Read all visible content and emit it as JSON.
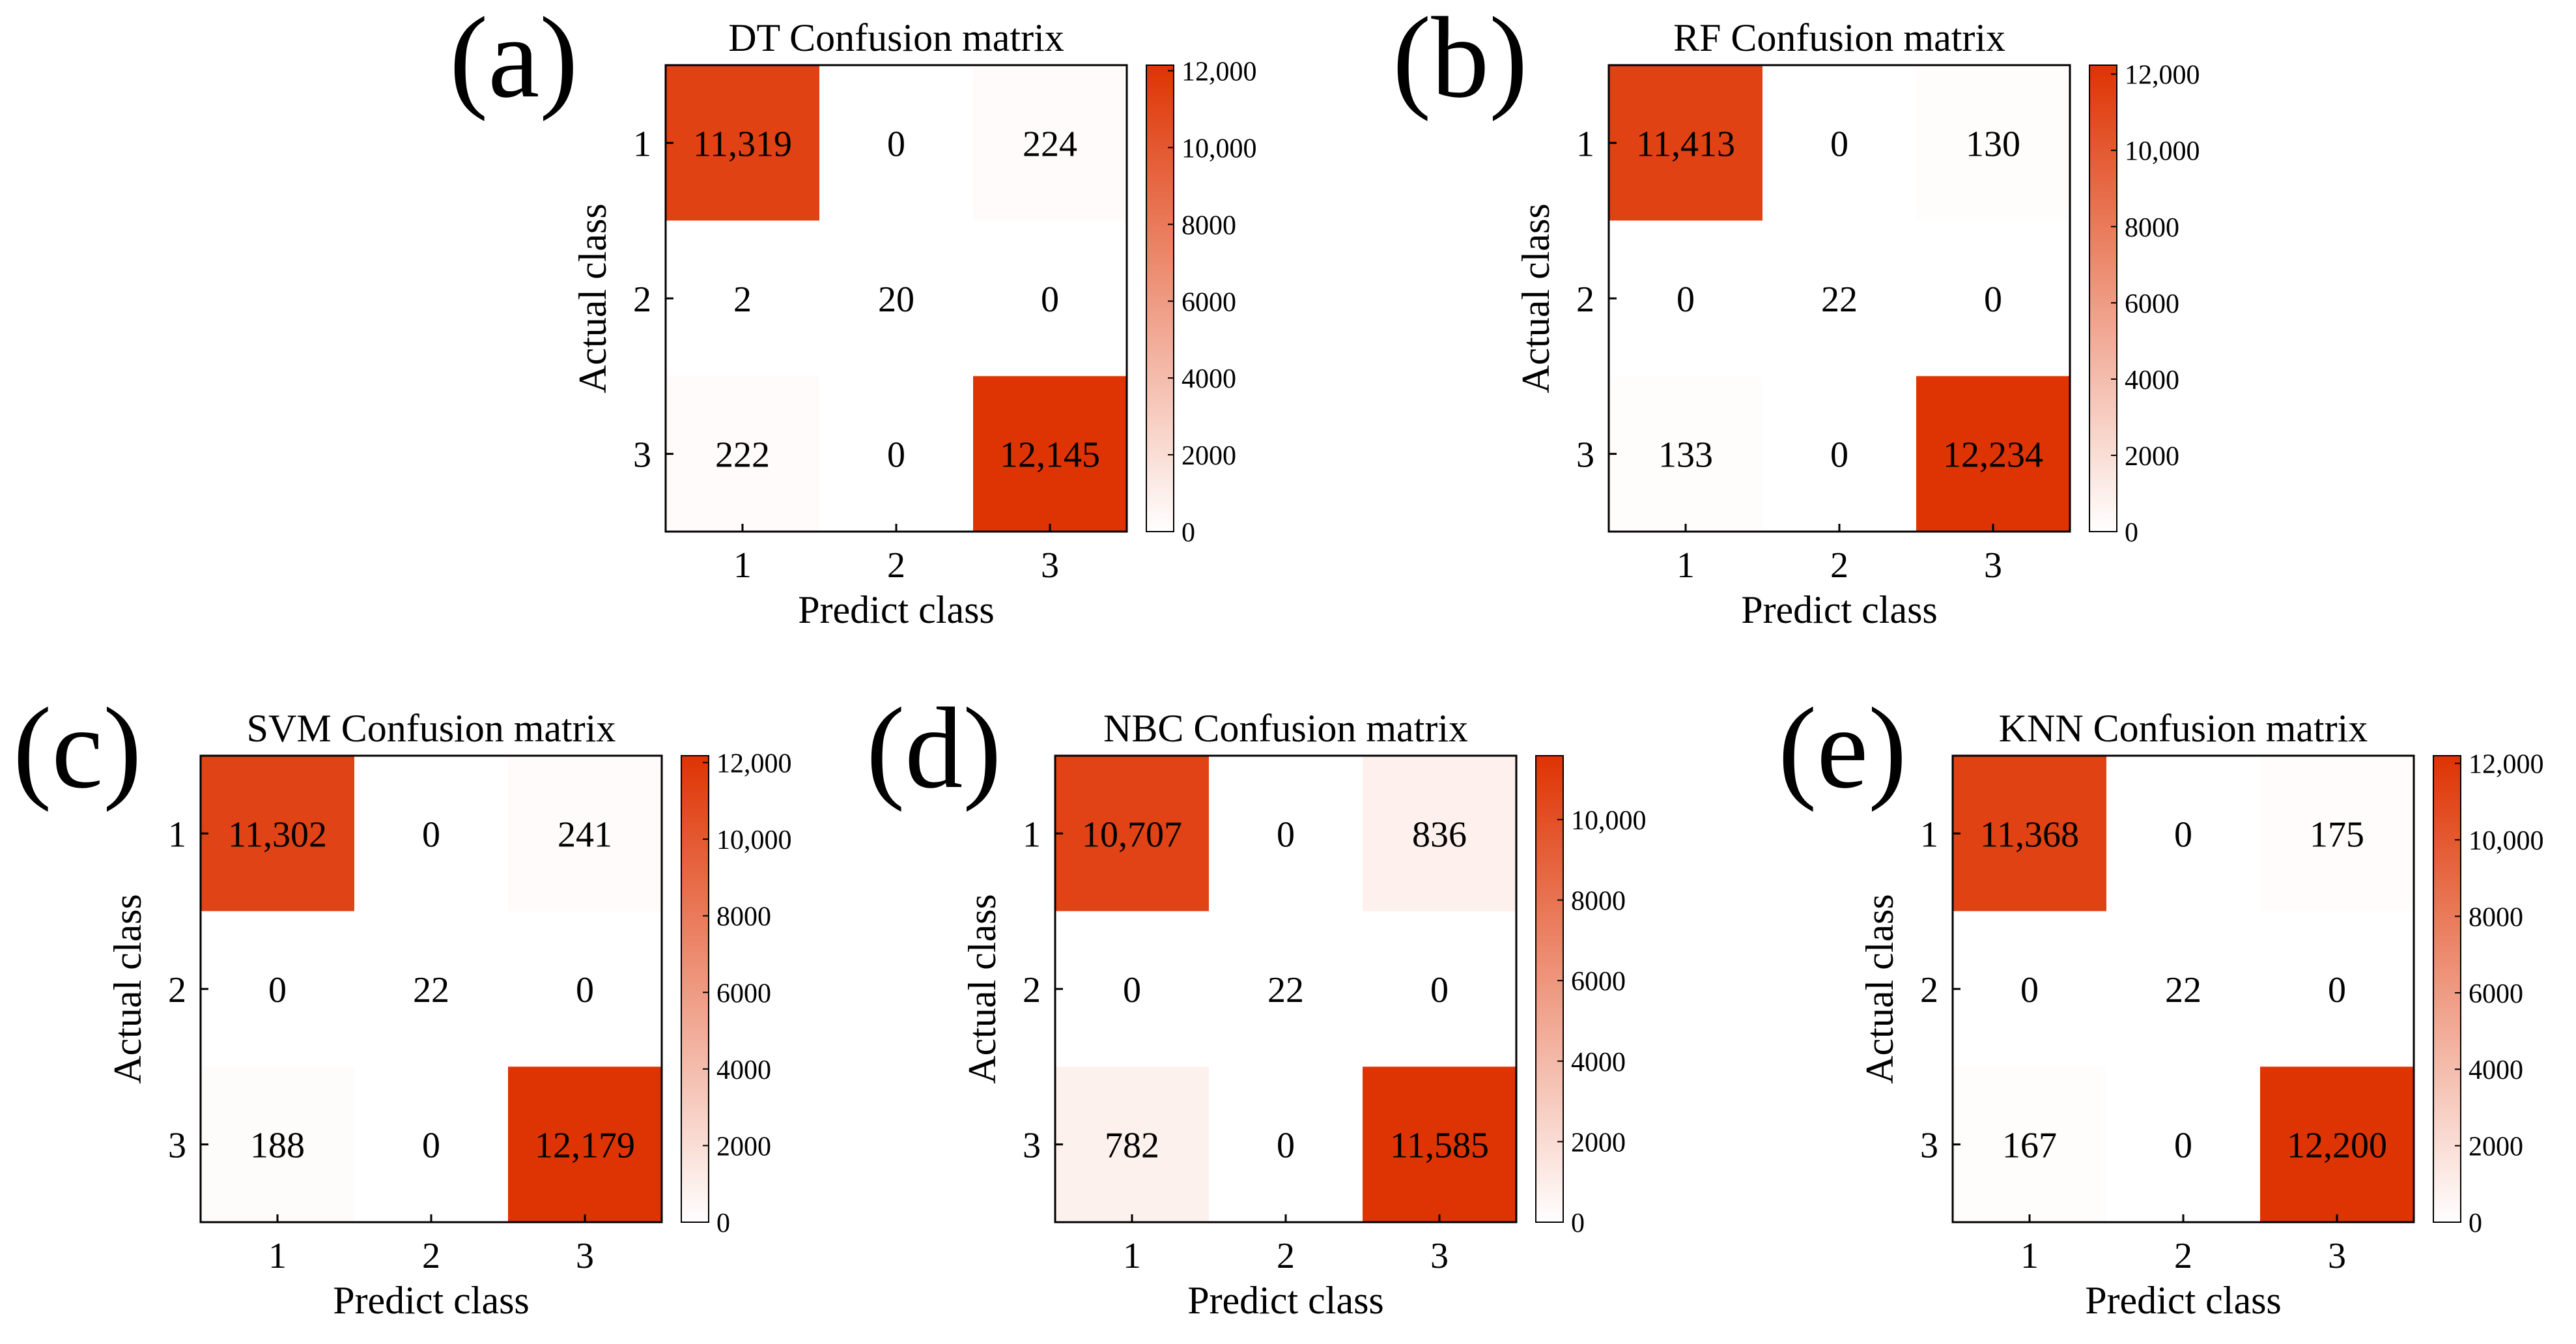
{
  "figure": {
    "colors": {
      "low": "#ffffff",
      "high": "#de3403",
      "axis": "#000000"
    }
  },
  "chart_data": [
    {
      "id": "a",
      "panel_label": "(a)",
      "type": "heatmap",
      "title": "DT Confusion matrix",
      "xlabel": "Predict class",
      "ylabel": "Actual class",
      "x_categories": [
        "1",
        "2",
        "3"
      ],
      "y_categories": [
        "1",
        "2",
        "3"
      ],
      "matrix": [
        [
          11319,
          0,
          224
        ],
        [
          2,
          20,
          0
        ],
        [
          222,
          0,
          12145
        ]
      ],
      "cell_labels": [
        [
          "11,319",
          "0",
          "224"
        ],
        [
          "2",
          "20",
          "0"
        ],
        [
          "222",
          "0",
          "12,145"
        ]
      ],
      "colorbar": {
        "min": 0,
        "max": 12145,
        "ticks": [
          0,
          2000,
          4000,
          6000,
          8000,
          10000,
          12000
        ],
        "tick_labels": [
          "0",
          "2000",
          "4000",
          "6000",
          "8000",
          "10,000",
          "12,000"
        ]
      }
    },
    {
      "id": "b",
      "panel_label": "(b)",
      "type": "heatmap",
      "title": "RF Confusion matrix",
      "xlabel": "Predict class",
      "ylabel": "Actual class",
      "x_categories": [
        "1",
        "2",
        "3"
      ],
      "y_categories": [
        "1",
        "2",
        "3"
      ],
      "matrix": [
        [
          11413,
          0,
          130
        ],
        [
          0,
          22,
          0
        ],
        [
          133,
          0,
          12234
        ]
      ],
      "cell_labels": [
        [
          "11,413",
          "0",
          "130"
        ],
        [
          "0",
          "22",
          "0"
        ],
        [
          "133",
          "0",
          "12,234"
        ]
      ],
      "colorbar": {
        "min": 0,
        "max": 12234,
        "ticks": [
          0,
          2000,
          4000,
          6000,
          8000,
          10000,
          12000
        ],
        "tick_labels": [
          "0",
          "2000",
          "4000",
          "6000",
          "8000",
          "10,000",
          "12,000"
        ]
      }
    },
    {
      "id": "c",
      "panel_label": "(c)",
      "type": "heatmap",
      "title": "SVM Confusion matrix",
      "xlabel": "Predict class",
      "ylabel": "Actual class",
      "x_categories": [
        "1",
        "2",
        "3"
      ],
      "y_categories": [
        "1",
        "2",
        "3"
      ],
      "matrix": [
        [
          11302,
          0,
          241
        ],
        [
          0,
          22,
          0
        ],
        [
          188,
          0,
          12179
        ]
      ],
      "cell_labels": [
        [
          "11,302",
          "0",
          "241"
        ],
        [
          "0",
          "22",
          "0"
        ],
        [
          "188",
          "0",
          "12,179"
        ]
      ],
      "colorbar": {
        "min": 0,
        "max": 12179,
        "ticks": [
          0,
          2000,
          4000,
          6000,
          8000,
          10000,
          12000
        ],
        "tick_labels": [
          "0",
          "2000",
          "4000",
          "6000",
          "8000",
          "10,000",
          "12,000"
        ]
      }
    },
    {
      "id": "d",
      "panel_label": "(d)",
      "type": "heatmap",
      "title": "NBC Confusion matrix",
      "xlabel": "Predict class",
      "ylabel": "Actual class",
      "x_categories": [
        "1",
        "2",
        "3"
      ],
      "y_categories": [
        "1",
        "2",
        "3"
      ],
      "matrix": [
        [
          10707,
          0,
          836
        ],
        [
          0,
          22,
          0
        ],
        [
          782,
          0,
          11585
        ]
      ],
      "cell_labels": [
        [
          "10,707",
          "0",
          "836"
        ],
        [
          "0",
          "22",
          "0"
        ],
        [
          "782",
          "0",
          "11,585"
        ]
      ],
      "colorbar": {
        "min": 0,
        "max": 11585,
        "ticks": [
          0,
          2000,
          4000,
          6000,
          8000,
          10000
        ],
        "tick_labels": [
          "0",
          "2000",
          "4000",
          "6000",
          "8000",
          "10,000"
        ]
      }
    },
    {
      "id": "e",
      "panel_label": "(e)",
      "type": "heatmap",
      "title": "KNN Confusion matrix",
      "xlabel": "Predict class",
      "ylabel": "Actual class",
      "x_categories": [
        "1",
        "2",
        "3"
      ],
      "y_categories": [
        "1",
        "2",
        "3"
      ],
      "matrix": [
        [
          11368,
          0,
          175
        ],
        [
          0,
          22,
          0
        ],
        [
          167,
          0,
          12200
        ]
      ],
      "cell_labels": [
        [
          "11,368",
          "0",
          "175"
        ],
        [
          "0",
          "22",
          "0"
        ],
        [
          "167",
          "0",
          "12,200"
        ]
      ],
      "colorbar": {
        "min": 0,
        "max": 12200,
        "ticks": [
          0,
          2000,
          4000,
          6000,
          8000,
          10000,
          12000
        ],
        "tick_labels": [
          "0",
          "2000",
          "4000",
          "6000",
          "8000",
          "10,000",
          "12,000"
        ]
      }
    }
  ]
}
